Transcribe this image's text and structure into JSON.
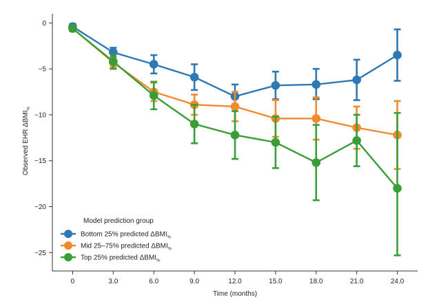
{
  "chart_data": {
    "type": "line",
    "title": "",
    "xlabel": "Time (months)",
    "ylabel": "Observed EHR ΔBMI",
    "ylabel_subscript": "%",
    "x": [
      0,
      3,
      6,
      9,
      12,
      15,
      18,
      21,
      24
    ],
    "x_tick_labels": [
      "0",
      "3.0",
      "6.0",
      "9.0",
      "12.0",
      "15.0",
      "18.0",
      "21.0",
      "24.0"
    ],
    "xlim": [
      -1.5,
      25.5
    ],
    "ylim": [
      -27,
      1
    ],
    "y_ticks": [
      0,
      -5,
      -10,
      -15,
      -20,
      -25
    ],
    "y_tick_labels": [
      "0",
      "−5",
      "−10",
      "−15",
      "−20",
      "−25"
    ],
    "grid": false,
    "legend_title": "Model prediction group",
    "legend_position": "bottom-left",
    "series": [
      {
        "name": "Bottom 25% predicted ΔBMI",
        "name_subscript": "%",
        "color": "#2e78b4",
        "values": [
          -0.4,
          -3.2,
          -4.5,
          -5.9,
          -8.0,
          -6.8,
          -6.7,
          -6.2,
          -3.5
        ],
        "err_low": [
          -0.7,
          -3.7,
          -5.5,
          -7.3,
          -9.3,
          -8.3,
          -8.3,
          -8.4,
          -6.3
        ],
        "err_high": [
          -0.1,
          -2.7,
          -3.5,
          -4.5,
          -6.7,
          -5.3,
          -5.0,
          -4.0,
          -0.7
        ]
      },
      {
        "name": "Mid 25–75% predicted ΔBMI",
        "name_subscript": "%",
        "color": "#f28a2b",
        "values": [
          -0.6,
          -4.3,
          -7.5,
          -8.9,
          -9.1,
          -10.4,
          -10.4,
          -11.4,
          -12.2
        ],
        "err_low": [
          -0.9,
          -4.8,
          -8.5,
          -10.0,
          -10.7,
          -12.4,
          -12.7,
          -13.7,
          -15.9
        ],
        "err_high": [
          -0.3,
          -3.8,
          -6.5,
          -7.8,
          -7.5,
          -8.4,
          -8.1,
          -9.1,
          -8.5
        ]
      },
      {
        "name": "Top 25% predicted ΔBMI",
        "name_subscript": "%",
        "color": "#3a9e36",
        "values": [
          -0.6,
          -4.2,
          -7.9,
          -11.0,
          -12.2,
          -13.0,
          -15.2,
          -12.8,
          -18.0
        ],
        "err_low": [
          -0.9,
          -5.0,
          -9.4,
          -13.1,
          -14.8,
          -15.8,
          -19.3,
          -15.6,
          -25.3
        ],
        "err_high": [
          -0.3,
          -3.4,
          -6.4,
          -8.9,
          -9.6,
          -10.2,
          -11.1,
          -10.0,
          -9.8
        ]
      }
    ]
  }
}
